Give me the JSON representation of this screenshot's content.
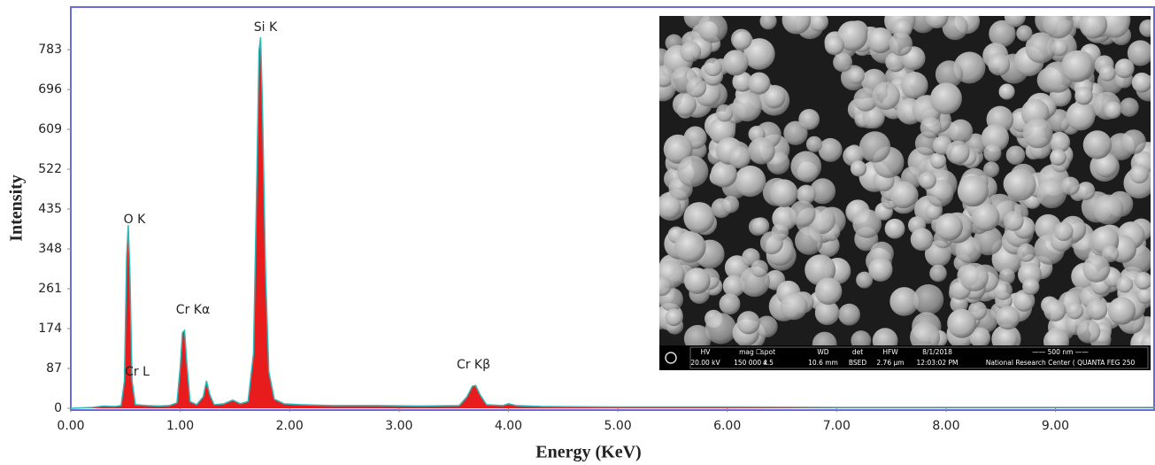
{
  "chart_data": {
    "type": "area",
    "x_label": "Energy (KeV)",
    "y_label": "Intensity",
    "series": [
      {
        "color": "#e81c1c",
        "line_color": "#2fb8b8",
        "x": [
          0.0,
          0.2,
          0.3,
          0.4,
          0.46,
          0.49,
          0.51,
          0.525,
          0.54,
          0.56,
          0.59,
          0.7,
          0.8,
          0.9,
          0.97,
          1.0,
          1.02,
          1.04,
          1.06,
          1.09,
          1.15,
          1.21,
          1.24,
          1.27,
          1.31,
          1.4,
          1.48,
          1.55,
          1.62,
          1.67,
          1.7,
          1.72,
          1.735,
          1.75,
          1.78,
          1.81,
          1.86,
          1.95,
          2.1,
          2.4,
          2.8,
          3.2,
          3.55,
          3.62,
          3.67,
          3.7,
          3.74,
          3.8,
          3.95,
          4.0,
          4.07,
          4.3,
          5.0,
          6.0,
          7.0,
          8.0,
          9.0,
          9.91
        ],
        "values": [
          0,
          2,
          5,
          4,
          6,
          60,
          330,
          400,
          300,
          60,
          8,
          6,
          5,
          6,
          12,
          90,
          165,
          170,
          100,
          15,
          8,
          25,
          60,
          30,
          8,
          10,
          18,
          10,
          15,
          120,
          500,
          780,
          810,
          680,
          300,
          80,
          20,
          10,
          8,
          6,
          6,
          5,
          6,
          25,
          48,
          50,
          30,
          8,
          6,
          10,
          6,
          4,
          3,
          3,
          2,
          2,
          2,
          2
        ]
      }
    ],
    "annotations": [
      "Si K",
      "O  K",
      "Cr Kα",
      "Cr L",
      "Cr Kβ"
    ],
    "xlim": [
      0,
      9.91
    ],
    "ylim": [
      0,
      876
    ],
    "xticks": [
      {
        "value": 0,
        "label": "0.00"
      },
      {
        "value": 1,
        "label": "1.00"
      },
      {
        "value": 2,
        "label": "2.00"
      },
      {
        "value": 3,
        "label": "3.00"
      },
      {
        "value": 4,
        "label": "4.00"
      },
      {
        "value": 5,
        "label": "5.00"
      },
      {
        "value": 6,
        "label": "6.00"
      },
      {
        "value": 7,
        "label": "7.00"
      },
      {
        "value": 8,
        "label": "8.00"
      },
      {
        "value": 9,
        "label": "9.00"
      }
    ],
    "yticks": [
      0,
      87,
      174,
      261,
      348,
      435,
      522,
      609,
      696,
      783
    ]
  },
  "inset": {
    "info": [
      [
        "HV",
        "20.00 kV"
      ],
      [
        "mag ☐",
        "150 000 x"
      ],
      [
        "spot",
        "4.5"
      ],
      [
        "WD",
        "10.6 mm"
      ],
      [
        "det",
        "BSED"
      ],
      [
        "HFW",
        "2.76 µm"
      ],
      [
        "8/1/2018",
        "12:03:02 PM"
      ],
      [
        "—— 500 nm ——",
        "National Research Center ( QUANTA FEG 250"
      ]
    ]
  }
}
